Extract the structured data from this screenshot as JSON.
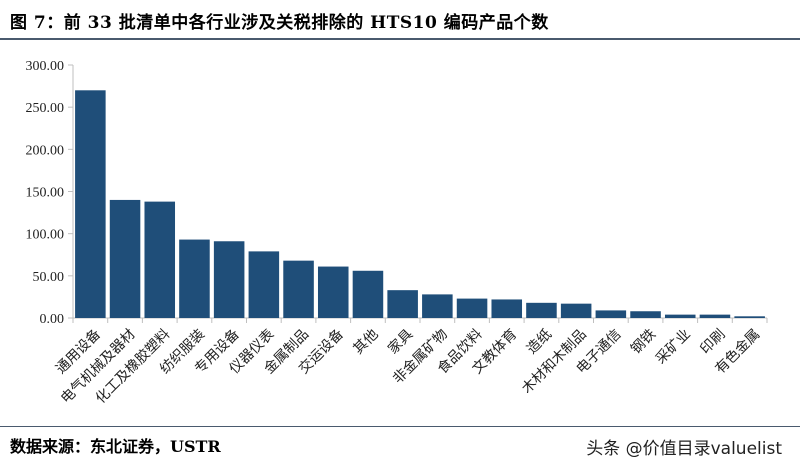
{
  "header": {
    "title": "图 7：前 33 批清单中各行业涉及关税排除的 HTS10 编码产品个数"
  },
  "footer": {
    "source": "数据来源：东北证券，USTR",
    "watermark": "头条 @价值目录valuelist"
  },
  "colors": {
    "bar": "#1f4e79",
    "axis": "#bfbfbf"
  },
  "chart_data": {
    "type": "bar",
    "title": "",
    "xlabel": "",
    "ylabel": "",
    "ylim": [
      0,
      300
    ],
    "yticks": [
      "0.00",
      "50.00",
      "100.00",
      "150.00",
      "200.00",
      "250.00",
      "300.00"
    ],
    "categories": [
      "通用设备",
      "电气机械及器材",
      "化工及橡胶塑料",
      "纺织服装",
      "专用设备",
      "仪器仪表",
      "金属制品",
      "交运设备",
      "其他",
      "家具",
      "非金属矿物",
      "食品饮料",
      "文教体育",
      "造纸",
      "木材和木制品",
      "电子通信",
      "钢铁",
      "采矿业",
      "印刷",
      "有色金属"
    ],
    "values": [
      270,
      140,
      138,
      93,
      91,
      79,
      68,
      61,
      56,
      33,
      28,
      23,
      22,
      18,
      17,
      9,
      8,
      4,
      4,
      2
    ],
    "grid": false,
    "legend": "none"
  }
}
